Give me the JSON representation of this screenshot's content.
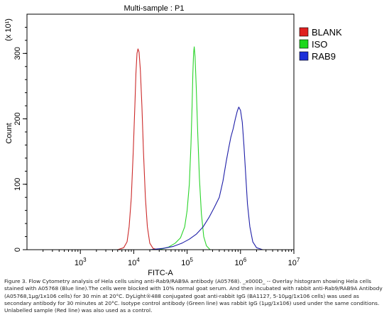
{
  "chart_data": {
    "type": "line",
    "title": "Multi-sample : P1",
    "xlabel": "FITC-A",
    "ylabel": "Count",
    "y_multiplier_label": "(x 10¹)",
    "x_scale": "log",
    "xlim": [
      100,
      10000000
    ],
    "ylim": [
      0,
      360
    ],
    "x_ticks": [
      {
        "value": 1000,
        "base": "10",
        "exp": "3"
      },
      {
        "value": 10000,
        "base": "10",
        "exp": "4"
      },
      {
        "value": 100000,
        "base": "10",
        "exp": "5"
      },
      {
        "value": 1000000,
        "base": "10",
        "exp": "6"
      },
      {
        "value": 10000000,
        "base": "10",
        "exp": "7"
      }
    ],
    "y_ticks": [
      0,
      100,
      200,
      300
    ],
    "legend_position": "right",
    "series": [
      {
        "name": "BLANK",
        "color": "#cc2a2a",
        "legend_color": "#e02020",
        "points": [
          [
            5000,
            0
          ],
          [
            6500,
            3
          ],
          [
            7500,
            12
          ],
          [
            8200,
            35
          ],
          [
            9000,
            80
          ],
          [
            9800,
            150
          ],
          [
            10500,
            220
          ],
          [
            11000,
            270
          ],
          [
            11500,
            300
          ],
          [
            12000,
            307
          ],
          [
            12600,
            302
          ],
          [
            13300,
            275
          ],
          [
            14200,
            220
          ],
          [
            15200,
            150
          ],
          [
            16500,
            80
          ],
          [
            18000,
            35
          ],
          [
            20000,
            10
          ],
          [
            23000,
            2
          ],
          [
            28000,
            0
          ]
        ]
      },
      {
        "name": "ISO",
        "color": "#2ad42a",
        "legend_color": "#1ed81e",
        "points": [
          [
            30000,
            0
          ],
          [
            45000,
            4
          ],
          [
            60000,
            10
          ],
          [
            75000,
            18
          ],
          [
            90000,
            35
          ],
          [
            100000,
            60
          ],
          [
            110000,
            100
          ],
          [
            118000,
            160
          ],
          [
            124000,
            220
          ],
          [
            128000,
            270
          ],
          [
            132000,
            300
          ],
          [
            136000,
            310
          ],
          [
            141000,
            295
          ],
          [
            148000,
            250
          ],
          [
            158000,
            180
          ],
          [
            170000,
            110
          ],
          [
            185000,
            55
          ],
          [
            205000,
            20
          ],
          [
            230000,
            6
          ],
          [
            270000,
            0
          ]
        ]
      },
      {
        "name": "RAB9",
        "color": "#1f1fa8",
        "legend_color": "#1c2fd8",
        "points": [
          [
            20000,
            0
          ],
          [
            35000,
            2
          ],
          [
            55000,
            5
          ],
          [
            80000,
            10
          ],
          [
            110000,
            16
          ],
          [
            150000,
            24
          ],
          [
            200000,
            35
          ],
          [
            260000,
            50
          ],
          [
            320000,
            64
          ],
          [
            400000,
            80
          ],
          [
            470000,
            105
          ],
          [
            540000,
            135
          ],
          [
            600000,
            155
          ],
          [
            660000,
            172
          ],
          [
            730000,
            185
          ],
          [
            800000,
            200
          ],
          [
            870000,
            212
          ],
          [
            930000,
            218
          ],
          [
            1000000,
            213
          ],
          [
            1080000,
            195
          ],
          [
            1160000,
            160
          ],
          [
            1250000,
            115
          ],
          [
            1350000,
            70
          ],
          [
            1500000,
            35
          ],
          [
            1700000,
            12
          ],
          [
            2000000,
            3
          ],
          [
            2600000,
            0
          ]
        ]
      }
    ]
  },
  "caption": "Figure 3. Flow Cytometry analysis of Hela cells using anti-Rab9/RAB9A antibody (A05768). _x000D_ -- Overlay histogram showing Hela cells stained with A05768 (Blue line).The cells were blocked with 10% normal goat serum. And then incubated with rabbit anti-Rab9/RAB9A Antibody (A05768,1μg/1x106 cells) for 30 min at 20°C. DyLight®488 conjugated goat anti-rabbit IgG (BA1127, 5-10μg/1x106 cells) was used as secondary antibody for 30 minutes at 20°C. Isotype control antibody (Green line) was rabbit IgG (1μg/1x106) used under the same conditions. Unlabelled sample (Red line) was also used as a control."
}
